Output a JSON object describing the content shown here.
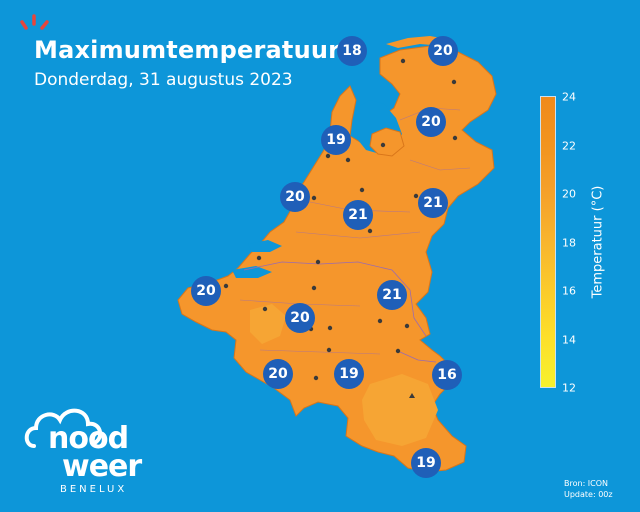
{
  "title": "Maximumtemperatuur",
  "subtitle": "Donderdag, 31 augustus 2023",
  "colorbar": {
    "label": "Temperatuur (°C)",
    "ticks": [
      "24",
      "22",
      "20",
      "18",
      "16",
      "14",
      "12"
    ],
    "min": 12,
    "max": 24,
    "colors": [
      "#f6f12e",
      "#fde02a",
      "#fbcb2b",
      "#f8b52e",
      "#f5a12a",
      "#f2941f",
      "#f08a1a"
    ]
  },
  "temperatures": [
    {
      "value": "18"
    },
    {
      "value": "20"
    },
    {
      "value": "20"
    },
    {
      "value": "19"
    },
    {
      "value": "20"
    },
    {
      "value": "21"
    },
    {
      "value": "21"
    },
    {
      "value": "20"
    },
    {
      "value": "21"
    },
    {
      "value": "20"
    },
    {
      "value": "20"
    },
    {
      "value": "19"
    },
    {
      "value": "16"
    },
    {
      "value": "19"
    }
  ],
  "logo": {
    "line1": "nood",
    "line2": "weer",
    "sub": "BENELUX"
  },
  "source": {
    "line1": "Bron: ICON",
    "line2": "Update: 00z"
  },
  "colors": {
    "sea": "#0d96d9",
    "land": "#f5962c",
    "badge": "#1f5fb8"
  }
}
